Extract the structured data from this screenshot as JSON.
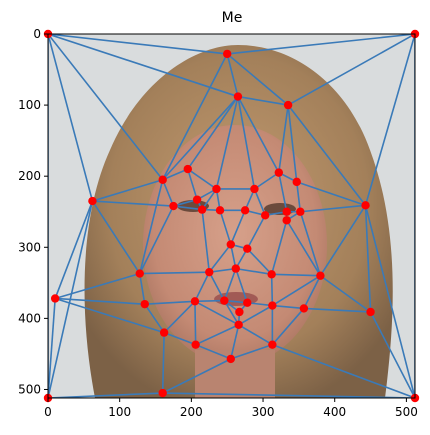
{
  "title": "Me",
  "axes": {
    "xlim": [
      0,
      512
    ],
    "ylim": [
      512,
      0
    ],
    "x_ticks": [
      0,
      100,
      200,
      300,
      400,
      500
    ],
    "y_ticks": [
      0,
      100,
      200,
      300,
      400,
      500
    ]
  },
  "image": {
    "subject": "face photo, long blonde hair, gray background"
  },
  "colors": {
    "edge": "#3a7ab8",
    "point": "#ff0000",
    "background": "#d9dcdd",
    "hair": "#a88561",
    "skin": "#c9927e"
  },
  "points": [
    [
      0,
      0
    ],
    [
      512,
      0
    ],
    [
      0,
      512
    ],
    [
      512,
      512
    ],
    [
      250,
      28
    ],
    [
      265,
      88
    ],
    [
      335,
      100
    ],
    [
      62,
      235
    ],
    [
      160,
      205
    ],
    [
      195,
      190
    ],
    [
      235,
      218
    ],
    [
      175,
      242
    ],
    [
      208,
      233
    ],
    [
      215,
      247
    ],
    [
      240,
      248
    ],
    [
      288,
      218
    ],
    [
      322,
      195
    ],
    [
      347,
      208
    ],
    [
      443,
      241
    ],
    [
      275,
      248
    ],
    [
      303,
      255
    ],
    [
      333,
      250
    ],
    [
      333,
      262
    ],
    [
      352,
      250
    ],
    [
      255,
      296
    ],
    [
      278,
      302
    ],
    [
      225,
      335
    ],
    [
      262,
      330
    ],
    [
      312,
      338
    ],
    [
      380,
      340
    ],
    [
      128,
      337
    ],
    [
      10,
      372
    ],
    [
      135,
      380
    ],
    [
      205,
      376
    ],
    [
      246,
      375
    ],
    [
      278,
      378
    ],
    [
      313,
      382
    ],
    [
      357,
      386
    ],
    [
      450,
      391
    ],
    [
      267,
      391
    ],
    [
      266,
      409
    ],
    [
      162,
      420
    ],
    [
      206,
      437
    ],
    [
      255,
      457
    ],
    [
      313,
      437
    ],
    [
      160,
      505
    ]
  ],
  "edges": [
    [
      0,
      4
    ],
    [
      4,
      1
    ],
    [
      0,
      7
    ],
    [
      0,
      8
    ],
    [
      0,
      2
    ],
    [
      0,
      5
    ],
    [
      1,
      6
    ],
    [
      1,
      18
    ],
    [
      1,
      3
    ],
    [
      4,
      5
    ],
    [
      4,
      6
    ],
    [
      5,
      6
    ],
    [
      5,
      9
    ],
    [
      5,
      10
    ],
    [
      5,
      8
    ],
    [
      5,
      15
    ],
    [
      5,
      16
    ],
    [
      6,
      16
    ],
    [
      6,
      17
    ],
    [
      6,
      18
    ],
    [
      4,
      8
    ],
    [
      7,
      8
    ],
    [
      7,
      11
    ],
    [
      7,
      30
    ],
    [
      7,
      31
    ],
    [
      7,
      2
    ],
    [
      8,
      9
    ],
    [
      8,
      11
    ],
    [
      9,
      10
    ],
    [
      9,
      12
    ],
    [
      10,
      12
    ],
    [
      10,
      13
    ],
    [
      10,
      14
    ],
    [
      10,
      15
    ],
    [
      11,
      12
    ],
    [
      11,
      13
    ],
    [
      12,
      13
    ],
    [
      13,
      14
    ],
    [
      14,
      24
    ],
    [
      13,
      26
    ],
    [
      11,
      30
    ],
    [
      15,
      16
    ],
    [
      15,
      19
    ],
    [
      15,
      20
    ],
    [
      16,
      17
    ],
    [
      16,
      21
    ],
    [
      17,
      18
    ],
    [
      17,
      23
    ],
    [
      18,
      23
    ],
    [
      18,
      29
    ],
    [
      18,
      38
    ],
    [
      18,
      3
    ],
    [
      19,
      20
    ],
    [
      19,
      24
    ],
    [
      20,
      21
    ],
    [
      20,
      25
    ],
    [
      21,
      22
    ],
    [
      21,
      23
    ],
    [
      22,
      23
    ],
    [
      22,
      28
    ],
    [
      22,
      29
    ],
    [
      23,
      29
    ],
    [
      24,
      25
    ],
    [
      24,
      26
    ],
    [
      24,
      27
    ],
    [
      25,
      27
    ],
    [
      25,
      28
    ],
    [
      26,
      27
    ],
    [
      26,
      30
    ],
    [
      26,
      33
    ],
    [
      26,
      34
    ],
    [
      27,
      28
    ],
    [
      27,
      35
    ],
    [
      28,
      29
    ],
    [
      28,
      36
    ],
    [
      29,
      36
    ],
    [
      29,
      37
    ],
    [
      29,
      38
    ],
    [
      30,
      32
    ],
    [
      30,
      31
    ],
    [
      31,
      32
    ],
    [
      31,
      41
    ],
    [
      31,
      2
    ],
    [
      32,
      33
    ],
    [
      32,
      41
    ],
    [
      33,
      34
    ],
    [
      33,
      41
    ],
    [
      33,
      42
    ],
    [
      34,
      35
    ],
    [
      34,
      39
    ],
    [
      35,
      36
    ],
    [
      35,
      39
    ],
    [
      36,
      37
    ],
    [
      36,
      40
    ],
    [
      36,
      44
    ],
    [
      37,
      38
    ],
    [
      37,
      44
    ],
    [
      38,
      3
    ],
    [
      39,
      40
    ],
    [
      40,
      42
    ],
    [
      40,
      43
    ],
    [
      40,
      44
    ],
    [
      41,
      42
    ],
    [
      41,
      45
    ],
    [
      42,
      43
    ],
    [
      43,
      44
    ],
    [
      43,
      45
    ],
    [
      44,
      3
    ],
    [
      45,
      2
    ],
    [
      45,
      3
    ],
    [
      14,
      19
    ],
    [
      8,
      30
    ],
    [
      27,
      34
    ],
    [
      34,
      40
    ],
    [
      33,
      40
    ]
  ]
}
